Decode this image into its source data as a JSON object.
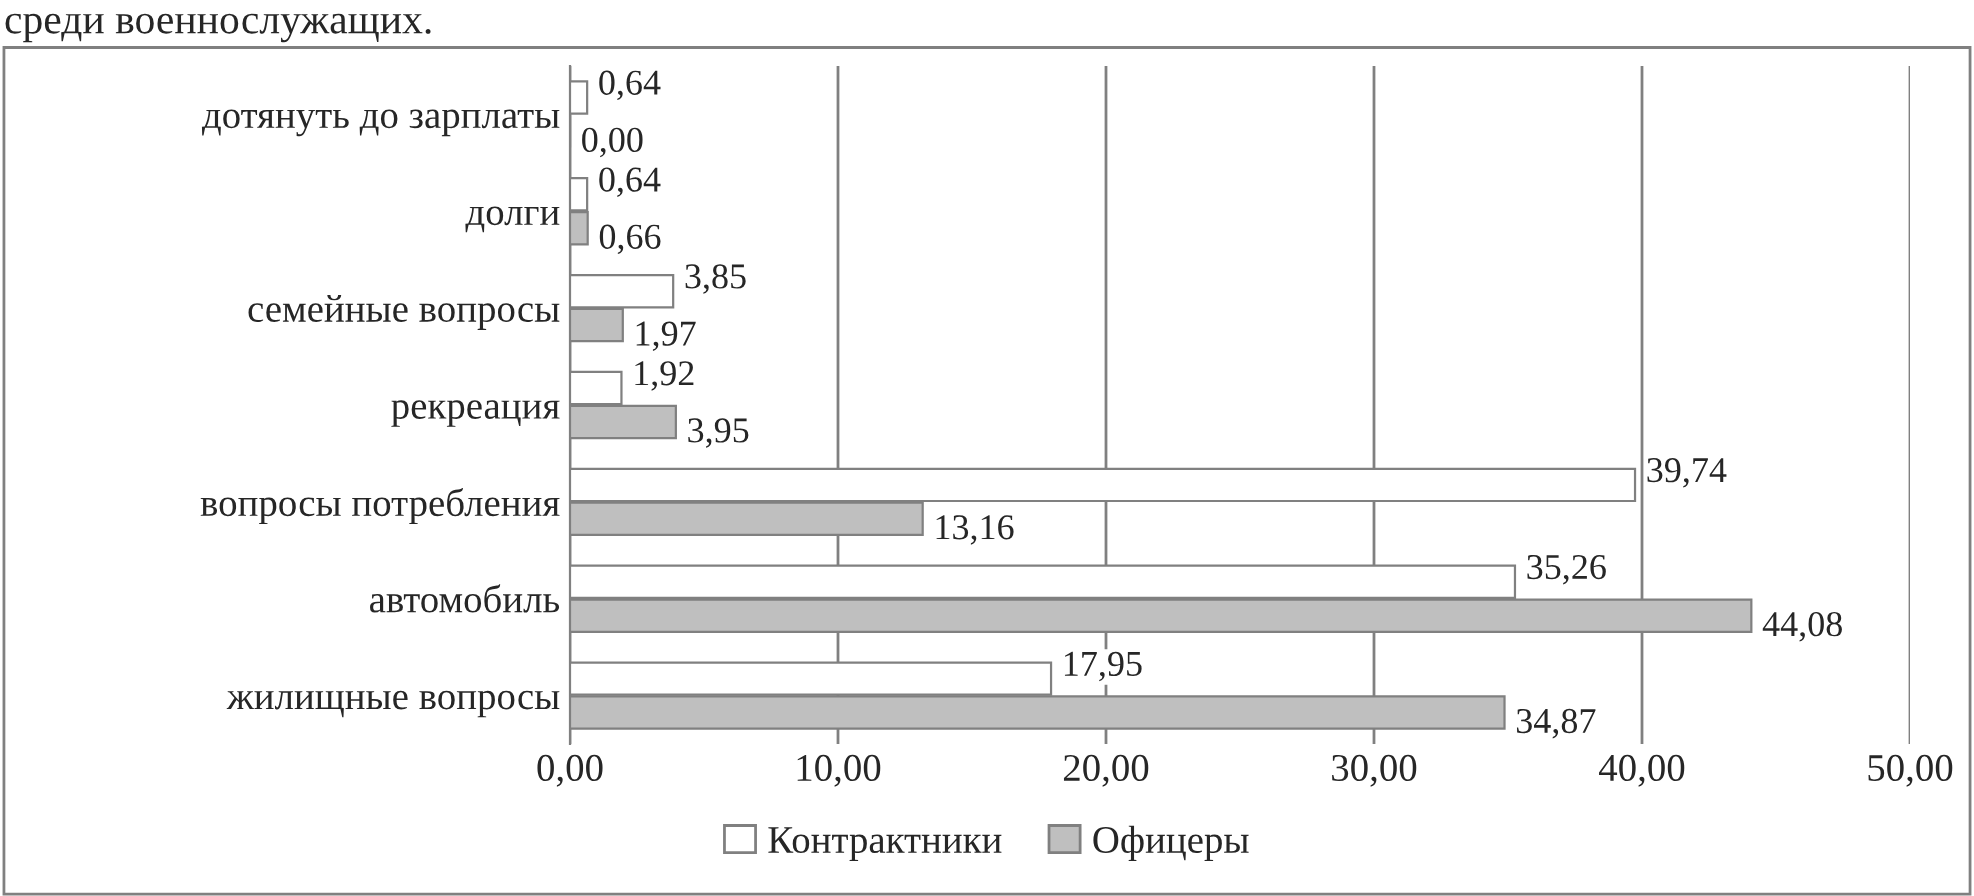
{
  "chart_data": {
    "type": "bar",
    "orientation": "horizontal",
    "annotations": [
      "среди военнослужащих."
    ],
    "categories": [
      "дотянуть до зарплаты",
      "долги",
      "семейные вопросы",
      "рекреация",
      "вопросы потребления",
      "автомобиль",
      "жилищные вопросы"
    ],
    "series": [
      {
        "name": "Контрактники",
        "color": "#ffffff",
        "values": [
          0.64,
          0.64,
          3.85,
          1.92,
          39.74,
          35.26,
          17.95
        ],
        "value_labels": [
          "0,64",
          "0,64",
          "3,85",
          "1,92",
          "39,74",
          "35,26",
          "17,95"
        ]
      },
      {
        "name": "Офицеры",
        "color": "#bfbfbf",
        "values": [
          0.0,
          0.66,
          1.97,
          3.95,
          13.16,
          44.08,
          34.87
        ],
        "value_labels": [
          "0,00",
          "0,66",
          "1,97",
          "3,95",
          "13,16",
          "44,08",
          "34,87"
        ]
      }
    ],
    "xlim": [
      0,
      50
    ],
    "xticks": [
      {
        "value": 0,
        "label": "0,00"
      },
      {
        "value": 10,
        "label": "10,00"
      },
      {
        "value": 20,
        "label": "20,00"
      },
      {
        "value": 30,
        "label": "30,00"
      },
      {
        "value": 40,
        "label": "40,00"
      },
      {
        "value": 50,
        "label": "50,00"
      }
    ],
    "grid": "x",
    "legend": "bottom"
  }
}
